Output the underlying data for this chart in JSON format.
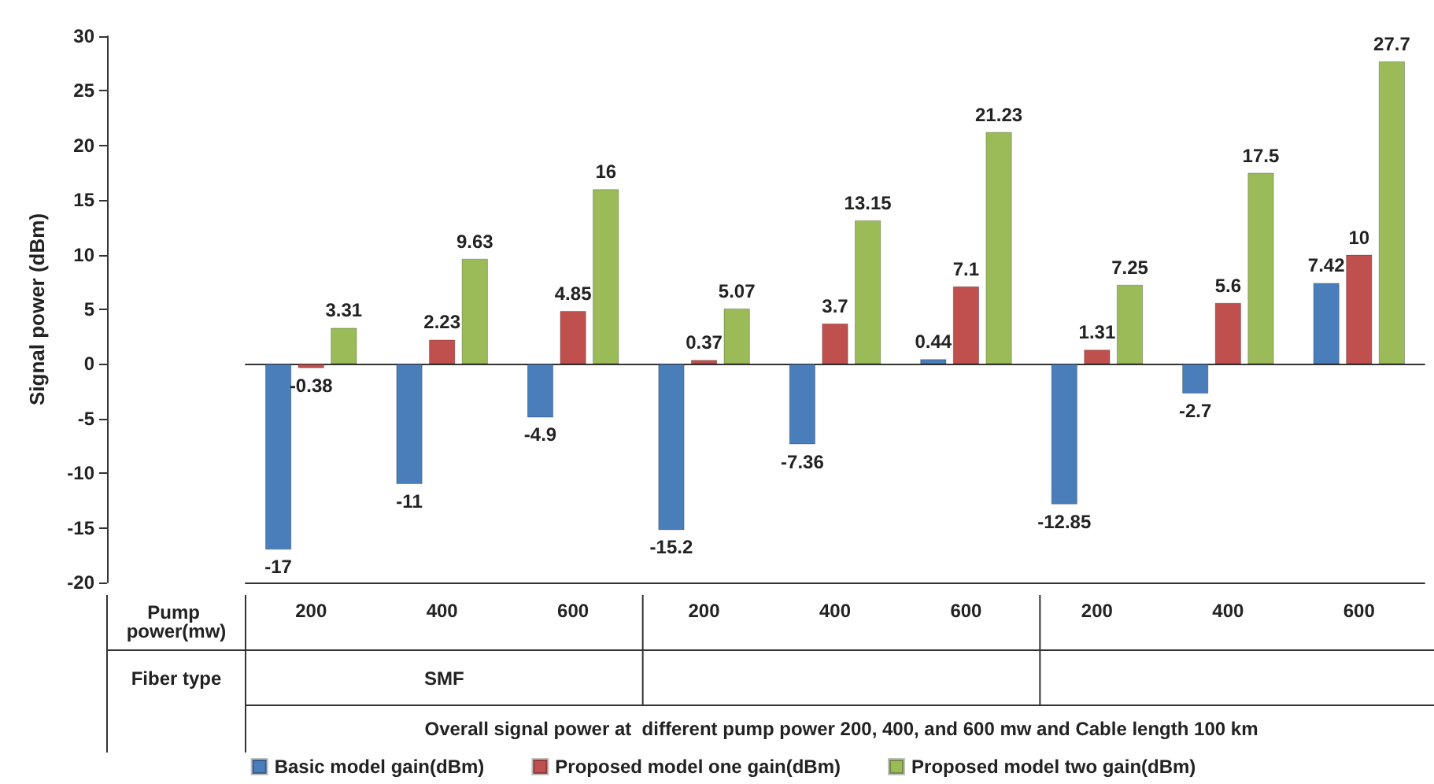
{
  "chart_data": {
    "type": "bar",
    "ylabel": "Signal power (dBm)",
    "categories": [
      "200",
      "400",
      "600",
      "200",
      "400",
      "600",
      "200",
      "400",
      "600"
    ],
    "series": [
      {
        "name": "Basic model gain(dBm)",
        "color": "#4a7ebb",
        "values": [
          -17,
          -11,
          -4.9,
          -15.2,
          -7.36,
          0.44,
          -12.85,
          -2.7,
          7.42
        ]
      },
      {
        "name": "Proposed model one gain(dBm)",
        "color": "#c0504d",
        "values": [
          -0.38,
          2.23,
          4.85,
          0.37,
          3.7,
          7.1,
          1.31,
          5.6,
          10
        ]
      },
      {
        "name": "Proposed model two gain(dBm)",
        "color": "#9bbb59",
        "values": [
          3.31,
          9.63,
          16,
          5.07,
          13.15,
          21.23,
          7.25,
          17.5,
          27.7
        ]
      }
    ],
    "ylim": [
      -20,
      30
    ],
    "yticks": [
      -20,
      -15,
      -10,
      -5,
      0,
      5,
      10,
      15,
      20,
      25,
      30
    ],
    "data_labels": true,
    "legend": "bottom",
    "annotations": [
      "Pump power(mw)",
      "Fiber type",
      "Overall signal power at  different pump power 200, 400, and 600 mw and Cable length 100 km",
      "SMF"
    ]
  }
}
